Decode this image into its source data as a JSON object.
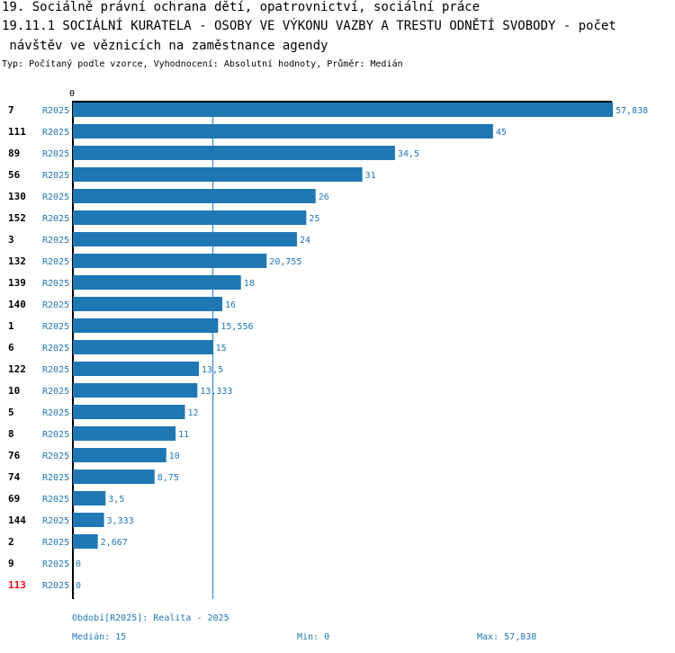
{
  "header": {
    "line1": "19. Sociálně právní ochrana dětí, opatrovnictví, sociální práce",
    "line2": "19.11.1 SOCIÁLNÍ KURATELA - OSOBY VE VÝKONU VAZBY A TRESTU ODNĚTÍ SVOBODY - počet",
    "line3": " návštěv ve věznicích na zaměstnance agendy",
    "subtitle": "Typ: Počítaný podle vzorce, Vyhodnocení: Absolutní hodnoty, Průměr: Medián"
  },
  "colors": {
    "bar": "#1f77b4",
    "label": "#1f77b4",
    "highlight": "#e8120c",
    "axis": "#000000",
    "median_line": "#1f77b4"
  },
  "chart_data": {
    "type": "bar",
    "orientation": "horizontal",
    "axis_zero_label": "0",
    "xlim": [
      0,
      57.838
    ],
    "median": 15,
    "series_name": "R2025",
    "rows": [
      {
        "id": "7",
        "series": "R2025",
        "value": 57.838,
        "label": "57,838",
        "highlight": false
      },
      {
        "id": "111",
        "series": "R2025",
        "value": 45,
        "label": "45",
        "highlight": false
      },
      {
        "id": "89",
        "series": "R2025",
        "value": 34.5,
        "label": "34,5",
        "highlight": false
      },
      {
        "id": "56",
        "series": "R2025",
        "value": 31,
        "label": "31",
        "highlight": false
      },
      {
        "id": "130",
        "series": "R2025",
        "value": 26,
        "label": "26",
        "highlight": false
      },
      {
        "id": "152",
        "series": "R2025",
        "value": 25,
        "label": "25",
        "highlight": false
      },
      {
        "id": "3",
        "series": "R2025",
        "value": 24,
        "label": "24",
        "highlight": false
      },
      {
        "id": "132",
        "series": "R2025",
        "value": 20.755,
        "label": "20,755",
        "highlight": false
      },
      {
        "id": "139",
        "series": "R2025",
        "value": 18,
        "label": "18",
        "highlight": false
      },
      {
        "id": "140",
        "series": "R2025",
        "value": 16,
        "label": "16",
        "highlight": false
      },
      {
        "id": "1",
        "series": "R2025",
        "value": 15.556,
        "label": "15,556",
        "highlight": false
      },
      {
        "id": "6",
        "series": "R2025",
        "value": 15,
        "label": "15",
        "highlight": false
      },
      {
        "id": "122",
        "series": "R2025",
        "value": 13.5,
        "label": "13,5",
        "highlight": false
      },
      {
        "id": "10",
        "series": "R2025",
        "value": 13.333,
        "label": "13,333",
        "highlight": false
      },
      {
        "id": "5",
        "series": "R2025",
        "value": 12,
        "label": "12",
        "highlight": false
      },
      {
        "id": "8",
        "series": "R2025",
        "value": 11,
        "label": "11",
        "highlight": false
      },
      {
        "id": "76",
        "series": "R2025",
        "value": 10,
        "label": "10",
        "highlight": false
      },
      {
        "id": "74",
        "series": "R2025",
        "value": 8.75,
        "label": "8,75",
        "highlight": false
      },
      {
        "id": "69",
        "series": "R2025",
        "value": 3.5,
        "label": "3,5",
        "highlight": false
      },
      {
        "id": "144",
        "series": "R2025",
        "value": 3.333,
        "label": "3,333",
        "highlight": false
      },
      {
        "id": "2",
        "series": "R2025",
        "value": 2.667,
        "label": "2,667",
        "highlight": false
      },
      {
        "id": "9",
        "series": "R2025",
        "value": 0,
        "label": "0",
        "highlight": false
      },
      {
        "id": "113",
        "series": "R2025",
        "value": 0,
        "label": "0",
        "highlight": true
      }
    ]
  },
  "footer": {
    "period": "Období[R2025]: Realita - 2025",
    "median": "Medián: 15",
    "min": "Min: 0",
    "max": "Max: 57,838"
  }
}
